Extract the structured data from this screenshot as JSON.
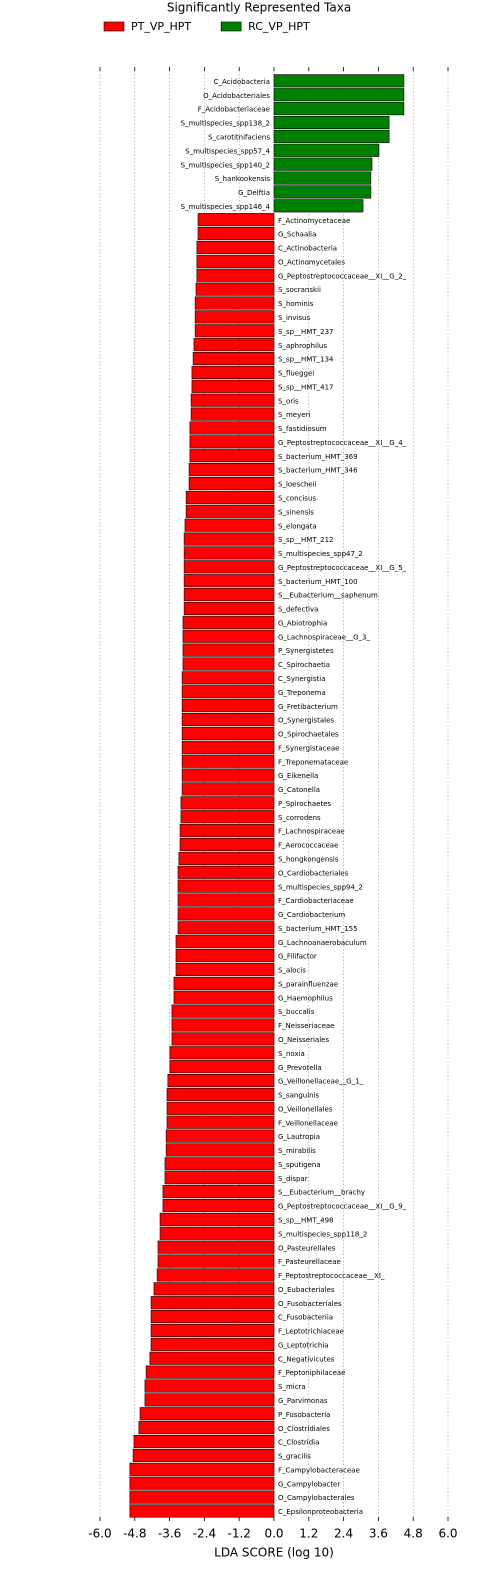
{
  "chart_data": {
    "type": "barh",
    "title": "Significantly Represented Taxa",
    "xlabel": "LDA SCORE (log 10)",
    "categories": [
      "C_Acidobacteria",
      "O_Acidobacteriales",
      "F_Acidobacteriaceae",
      "S_multispecies_spp138_2",
      "S_carotitnifaciens",
      "S_multispecies_spp57_4",
      "S_multispecies_spp140_2",
      "S_hankookensis",
      "G_Delftia",
      "S_multispecies_spp146_4",
      "F_Actinomycetaceae",
      "G_Schaalia",
      "C_Actinobacteria",
      "O_Actinomycetales",
      "G_Peptostreptococcaceae__XI__G_2_",
      "S_socranskii",
      "S_hominis",
      "S_invisus",
      "S_sp__HMT_237",
      "S_aphrophilus",
      "S_sp__HMT_134",
      "S_flueggei",
      "S_sp__HMT_417",
      "S_oris",
      "S_meyeri",
      "S_fastidiosum",
      "G_Peptostreptococcaceae__XI__G_4_",
      "S_bacterium_HMT_369",
      "S_bacterium_HMT_346",
      "S_loescheii",
      "S_concisus",
      "S_sinensis",
      "S_elongata",
      "S_sp__HMT_212",
      "S_multispecies_spp47_2",
      "G_Peptostreptococcaceae__XI__G_5_",
      "S_bacterium_HMT_100",
      "S__Eubacterium__saphenum",
      "S_defectiva",
      "G_Abiotrophia",
      "G_Lachnospiraceae__G_3_",
      "P_Synergistetes",
      "C_Spirochaetia",
      "C_Synergistia",
      "G_Treponema",
      "G_Fretibacterium",
      "O_Synergistales",
      "O_Spirochaetales",
      "F_Synergistaceae",
      "F_Treponemataceae",
      "G_Eikenella",
      "G_Catonella",
      "P_Spirochaetes",
      "S_corrodens",
      "F_Lachnospiraceae",
      "F_Aerococcaceae",
      "S_hongkongensis",
      "O_Cardiobacteriales",
      "S_multispecies_spp94_2",
      "F_Cardiobacteriaceae",
      "G_Cardiobacterium",
      "S_bacterium_HMT_155",
      "G_Lachnoanaerobaculum",
      "G_Filifactor",
      "S_alocis",
      "S_parainfluenzae",
      "G_Haemophilus",
      "S_buccalis",
      "F_Neisseriaceae",
      "O_Neisseriales",
      "S_noxia",
      "G_Prevotella",
      "G_Veillonellaceae__G_1_",
      "S_sanguinis",
      "O_Veillonellales",
      "F_Veillonellaceae",
      "G_Lautropia",
      "S_mirabilis",
      "S_sputigena",
      "S_dispar",
      "S__Eubacterium__brachy",
      "G_Peptostreptococcaceae__XI__G_9_",
      "S_sp__HMT_498",
      "S_multispecies_spp118_2",
      "O_Pasteurellales",
      "F_Pasteurellaceae",
      "F_Peptostreptococcaceae__XI_",
      "O_Eubacteriales",
      "O_Fusobacteriales",
      "C_Fusobacteriia",
      "F_Leptotrichiaceae",
      "G_Leptotrichia",
      "C_Negativicutes",
      "F_Peptoniphilaceae",
      "S_micra",
      "G_Parvimonas",
      "P_Fusobacteria",
      "O_Clostridiales",
      "C_Clostridia",
      "S_gracilis",
      "F_Campylobacteraceae",
      "G_Campylobacter",
      "O_Campylobacterales",
      "C_Epsilonproteobacteria"
    ],
    "series": [
      {
        "name": "PT_VP_HPT",
        "color": "#ff0000",
        "values": [
          null,
          null,
          null,
          null,
          null,
          null,
          null,
          null,
          null,
          null,
          -2.62,
          -2.62,
          -2.66,
          -2.66,
          -2.66,
          -2.69,
          -2.72,
          -2.72,
          -2.72,
          -2.76,
          -2.79,
          -2.83,
          -2.83,
          -2.86,
          -2.86,
          -2.9,
          -2.9,
          -2.9,
          -2.93,
          -2.93,
          -3.03,
          -3.03,
          -3.07,
          -3.1,
          -3.1,
          -3.1,
          -3.1,
          -3.1,
          -3.1,
          -3.14,
          -3.14,
          -3.14,
          -3.14,
          -3.17,
          -3.17,
          -3.17,
          -3.17,
          -3.17,
          -3.17,
          -3.17,
          -3.17,
          -3.17,
          -3.21,
          -3.21,
          -3.24,
          -3.24,
          -3.28,
          -3.31,
          -3.31,
          -3.31,
          -3.31,
          -3.31,
          -3.38,
          -3.38,
          -3.38,
          -3.45,
          -3.45,
          -3.52,
          -3.52,
          -3.52,
          -3.59,
          -3.59,
          -3.66,
          -3.69,
          -3.69,
          -3.69,
          -3.72,
          -3.72,
          -3.76,
          -3.76,
          -3.83,
          -3.83,
          -3.93,
          -3.93,
          -4.0,
          -4.0,
          -4.03,
          -4.14,
          -4.24,
          -4.24,
          -4.24,
          -4.24,
          -4.28,
          -4.41,
          -4.45,
          -4.45,
          -4.62,
          -4.66,
          -4.83,
          -4.86,
          -4.97,
          -4.97,
          -4.97,
          -4.97
        ]
      },
      {
        "name": "RC_VP_HPT",
        "color": "#008000",
        "values": [
          4.48,
          4.48,
          4.48,
          3.97,
          3.97,
          3.62,
          3.38,
          3.34,
          3.34,
          3.07,
          null,
          null,
          null,
          null,
          null,
          null,
          null,
          null,
          null,
          null,
          null,
          null,
          null,
          null,
          null,
          null,
          null,
          null,
          null,
          null,
          null,
          null,
          null,
          null,
          null,
          null,
          null,
          null,
          null,
          null,
          null,
          null,
          null,
          null,
          null,
          null,
          null,
          null,
          null,
          null,
          null,
          null,
          null,
          null,
          null,
          null,
          null,
          null,
          null,
          null,
          null,
          null,
          null,
          null,
          null,
          null,
          null,
          null,
          null,
          null,
          null,
          null,
          null,
          null,
          null,
          null,
          null,
          null,
          null,
          null,
          null,
          null,
          null,
          null,
          null,
          null,
          null,
          null,
          null,
          null,
          null,
          null,
          null,
          null,
          null,
          null,
          null,
          null,
          null,
          null,
          null,
          null,
          null,
          null
        ]
      }
    ],
    "xlim": [
      -6,
      6
    ],
    "xticks": [
      {
        "value": -6,
        "label": "-6.0"
      },
      -4.8,
      -3.6,
      -2.4,
      -1.2,
      {
        "value": 0,
        "label": "0.0"
      },
      1.2,
      2.4,
      3.6,
      4.8,
      {
        "value": 6,
        "label": "6.0"
      }
    ],
    "grid": true,
    "legend": "top"
  }
}
